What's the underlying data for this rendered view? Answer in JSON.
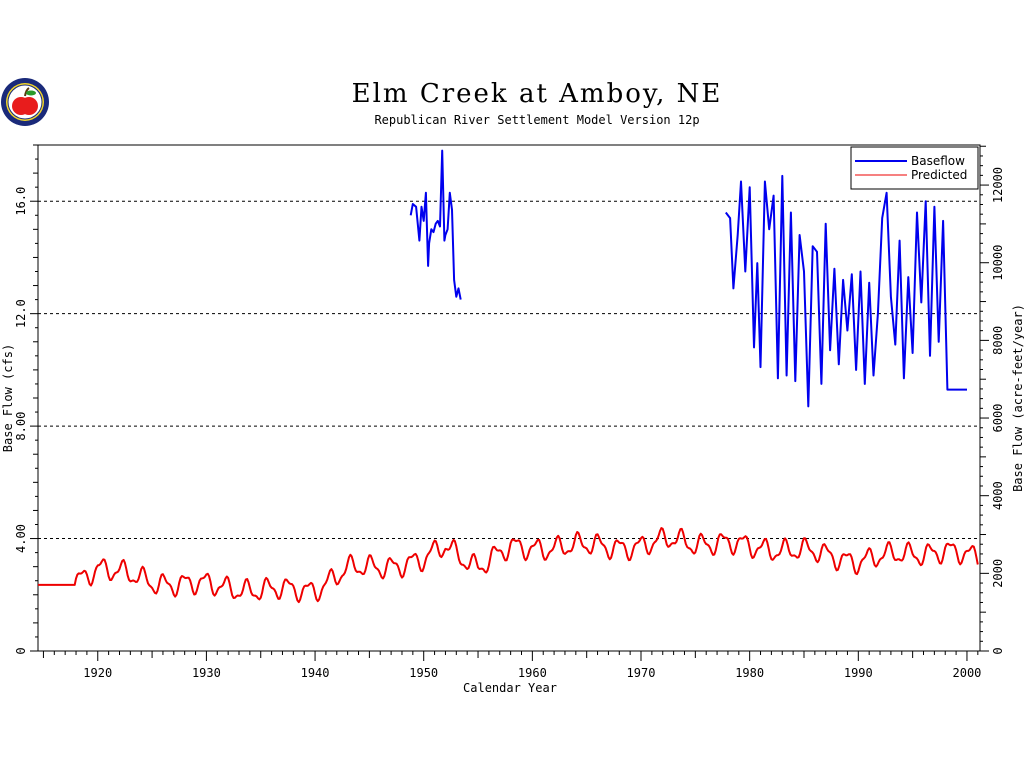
{
  "chart_data": {
    "type": "line",
    "title": "Elm Creek at Amboy, NE",
    "subtitle": "Republican River Settlement Model Version 12p",
    "xlabel": "Calendar Year",
    "ylabel": "Base Flow (cfs)",
    "ylabel_right": "Base Flow (acre-feet/year)",
    "xlim": [
      1914.5,
      2001.2
    ],
    "ylim": [
      0,
      18
    ],
    "x_ticks": [
      "1920",
      "1930",
      "1940",
      "1950",
      "1960",
      "1970",
      "1980",
      "1990",
      "2000"
    ],
    "y_ticks": [
      "0",
      "4.00",
      "8.00",
      "12.0",
      "16.0"
    ],
    "y_ticks_right": [
      "0",
      "2000",
      "4000",
      "6000",
      "8000",
      "10000",
      "12000"
    ],
    "gridlines_y": [
      4,
      8,
      12,
      16
    ],
    "grid": "horizontal dashed",
    "legend_placement": "top-right",
    "series": [
      {
        "name": "Baseflow",
        "color": "#0000ee",
        "segments": [
          {
            "x": [
              1948.8,
              1949.0,
              1949.3,
              1949.6,
              1949.8,
              1950.0,
              1950.2,
              1950.4,
              1950.5,
              1950.7,
              1950.9,
              1951.1,
              1951.3,
              1951.5,
              1951.7,
              1951.9,
              1952.0,
              1952.2,
              1952.4,
              1952.6,
              1952.8,
              1953.0,
              1953.2,
              1953.4
            ],
            "y": [
              15.5,
              15.9,
              15.8,
              14.6,
              15.8,
              15.3,
              16.3,
              13.7,
              14.5,
              15.0,
              14.9,
              15.2,
              15.3,
              15.1,
              17.8,
              14.6,
              14.8,
              15.0,
              16.3,
              15.7,
              13.2,
              12.6,
              12.9,
              12.5
            ]
          },
          {
            "x": [
              1977.8,
              1978.2,
              1978.5,
              1978.9,
              1979.2,
              1979.6,
              1980.0,
              1980.4,
              1980.7,
              1981.0,
              1981.4,
              1981.8,
              1982.2,
              1982.6,
              1983.0,
              1983.4,
              1983.8,
              1984.2,
              1984.6,
              1985.0,
              1985.4,
              1985.8,
              1986.2,
              1986.6,
              1987.0,
              1987.4,
              1987.8,
              1988.2,
              1988.6,
              1989.0,
              1989.4,
              1989.8,
              1990.2,
              1990.6,
              1991.0,
              1991.4,
              1991.8,
              1992.2,
              1992.6,
              1993.0,
              1993.4,
              1993.8,
              1994.2,
              1994.6,
              1995.0,
              1995.4,
              1995.8,
              1996.2,
              1996.6,
              1997.0,
              1997.4,
              1997.8,
              1998.2,
              1998.6,
              1999.0,
              1999.4,
              1999.8,
              2000.0
            ],
            "y": [
              15.6,
              15.4,
              12.9,
              14.8,
              16.7,
              13.5,
              16.5,
              10.8,
              13.8,
              10.1,
              16.7,
              15.0,
              16.2,
              9.7,
              16.9,
              9.8,
              15.6,
              9.6,
              14.8,
              13.5,
              8.7,
              14.4,
              14.2,
              9.5,
              15.2,
              10.7,
              13.6,
              10.2,
              13.2,
              11.4,
              13.4,
              10.0,
              13.5,
              9.5,
              13.1,
              9.8,
              12.0,
              15.4,
              16.3,
              12.6,
              10.9,
              14.6,
              9.7,
              13.3,
              10.6,
              15.6,
              12.4,
              16.0,
              10.5,
              15.8,
              11.0,
              15.3,
              9.3,
              9.3,
              9.3,
              9.3,
              9.3,
              9.3
            ]
          }
        ]
      },
      {
        "name": "Predicted",
        "color": "#ee0000",
        "x_start": 1914.5,
        "x_step": 0.25,
        "flat_until": 1918.0,
        "flat_value": 2.35,
        "anchors": [
          [
            1918.0,
            2.5
          ],
          [
            1920.0,
            3.0
          ],
          [
            1925.0,
            2.45
          ],
          [
            1930.0,
            2.35
          ],
          [
            1935.0,
            2.15
          ],
          [
            1940.0,
            2.2
          ],
          [
            1943.0,
            2.9
          ],
          [
            1947.0,
            3.05
          ],
          [
            1950.0,
            3.2
          ],
          [
            1952.0,
            3.75
          ],
          [
            1955.0,
            3.0
          ],
          [
            1958.0,
            3.65
          ],
          [
            1962.0,
            3.7
          ],
          [
            1966.0,
            3.75
          ],
          [
            1970.0,
            3.7
          ],
          [
            1973.0,
            4.0
          ],
          [
            1975.0,
            3.85
          ],
          [
            1978.0,
            3.8
          ],
          [
            1982.0,
            3.65
          ],
          [
            1986.0,
            3.5
          ],
          [
            1990.0,
            3.2
          ],
          [
            1994.0,
            3.45
          ],
          [
            1998.0,
            3.55
          ],
          [
            2001.0,
            3.3
          ]
        ]
      }
    ]
  },
  "colors": {
    "baseflow": "#0000ee",
    "predicted": "#ee0000",
    "axis": "#000000"
  },
  "logo": {
    "icon": "apple-seal-logo"
  }
}
